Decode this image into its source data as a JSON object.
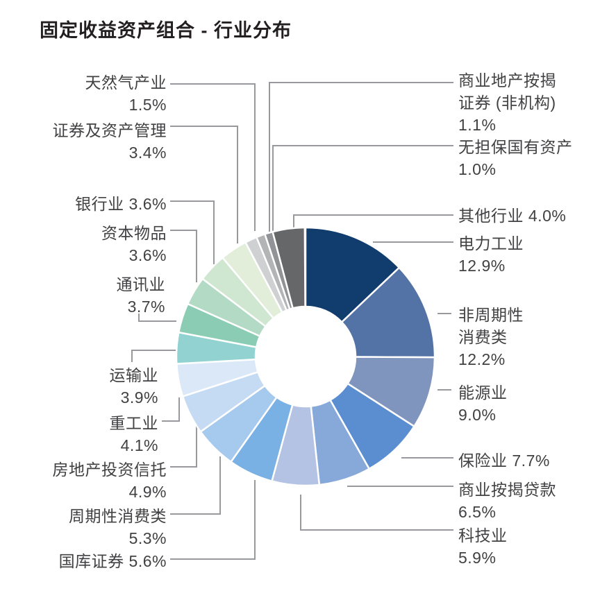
{
  "title": "固定收益资产组合 - 行业分布",
  "chart_data": {
    "type": "pie",
    "subtype": "donut",
    "title": "固定收益资产组合 - 行业分布",
    "unit": "%",
    "start_angle_deg": 0,
    "direction": "clockwise",
    "total": 100.0,
    "series": [
      {
        "name": "电力工业",
        "value": 12.9,
        "color": "#113d6e"
      },
      {
        "name": "非周期性消费类",
        "value": 12.2,
        "color": "#5373a6"
      },
      {
        "name": "能源业",
        "value": 9.0,
        "color": "#8095bd"
      },
      {
        "name": "保险业",
        "value": 7.7,
        "color": "#5a8ed1"
      },
      {
        "name": "商业按揭贷款",
        "value": 6.5,
        "color": "#87a9da"
      },
      {
        "name": "科技业",
        "value": 5.9,
        "color": "#b4c3e3"
      },
      {
        "name": "国库证券",
        "value": 5.6,
        "color": "#79b1e4"
      },
      {
        "name": "周期性消费类",
        "value": 5.3,
        "color": "#a6c9ee"
      },
      {
        "name": "房地产投资信托",
        "value": 4.9,
        "color": "#c5daf3"
      },
      {
        "name": "重工业",
        "value": 4.1,
        "color": "#dae8f7"
      },
      {
        "name": "运输业",
        "value": 3.9,
        "color": "#92d2d1"
      },
      {
        "name": "通讯业",
        "value": 3.7,
        "color": "#8accb4"
      },
      {
        "name": "资本物品",
        "value": 3.6,
        "color": "#b3dac5"
      },
      {
        "name": "银行业",
        "value": 3.6,
        "color": "#cfe7d1"
      },
      {
        "name": "证券及资产管理",
        "value": 3.4,
        "color": "#e2eed9"
      },
      {
        "name": "天然气产业",
        "value": 1.5,
        "color": "#ced0d2"
      },
      {
        "name": "商业地产按揭证券 (非机构)",
        "value": 1.1,
        "color": "#b2b4b6"
      },
      {
        "name": "无担保国有资产",
        "value": 1.0,
        "color": "#919396"
      },
      {
        "name": "其他行业",
        "value": 4.0,
        "color": "#666769"
      }
    ]
  },
  "callouts": [
    {
      "id": "gas",
      "lines": [
        "天然气产业",
        "1.5%"
      ]
    },
    {
      "id": "sec_am",
      "lines": [
        "证券及资产管理",
        "3.4%"
      ]
    },
    {
      "id": "banking",
      "lines": [
        "银行业 3.6%"
      ]
    },
    {
      "id": "capital",
      "lines": [
        "资本物品",
        "3.6%"
      ]
    },
    {
      "id": "comm",
      "lines": [
        "通讯业",
        "3.7%"
      ]
    },
    {
      "id": "transport",
      "lines": [
        "运输业",
        "3.9%"
      ]
    },
    {
      "id": "heavy",
      "lines": [
        "重工业",
        "4.1%"
      ]
    },
    {
      "id": "reits",
      "lines": [
        "房地产投资信托",
        "4.9%"
      ]
    },
    {
      "id": "cyclical",
      "lines": [
        "周期性消费类",
        "5.3%"
      ]
    },
    {
      "id": "treasury",
      "lines": [
        "国库证券 5.6%"
      ]
    },
    {
      "id": "cmbs",
      "lines": [
        "商业地产按揭",
        "证券 (非机构)",
        "1.1%"
      ]
    },
    {
      "id": "sovereign",
      "lines": [
        "无担保国有资产",
        "1.0%"
      ]
    },
    {
      "id": "other",
      "lines": [
        "其他行业 4.0%"
      ]
    },
    {
      "id": "power",
      "lines": [
        "电力工业",
        "12.9%"
      ]
    },
    {
      "id": "noncyclical",
      "lines": [
        "非周期性",
        "消费类",
        "12.2%"
      ]
    },
    {
      "id": "energy",
      "lines": [
        "能源业",
        "9.0%"
      ]
    },
    {
      "id": "insurance",
      "lines": [
        "保险业 7.7%"
      ]
    },
    {
      "id": "cml",
      "lines": [
        "商业按揭贷款",
        "6.5%"
      ]
    },
    {
      "id": "tech",
      "lines": [
        "科技业",
        "5.9%"
      ]
    }
  ],
  "colors": {
    "leader_line": "#97999c",
    "slice_gap": "#ffffff",
    "label_text": "#414042",
    "title_text": "#231f20"
  }
}
